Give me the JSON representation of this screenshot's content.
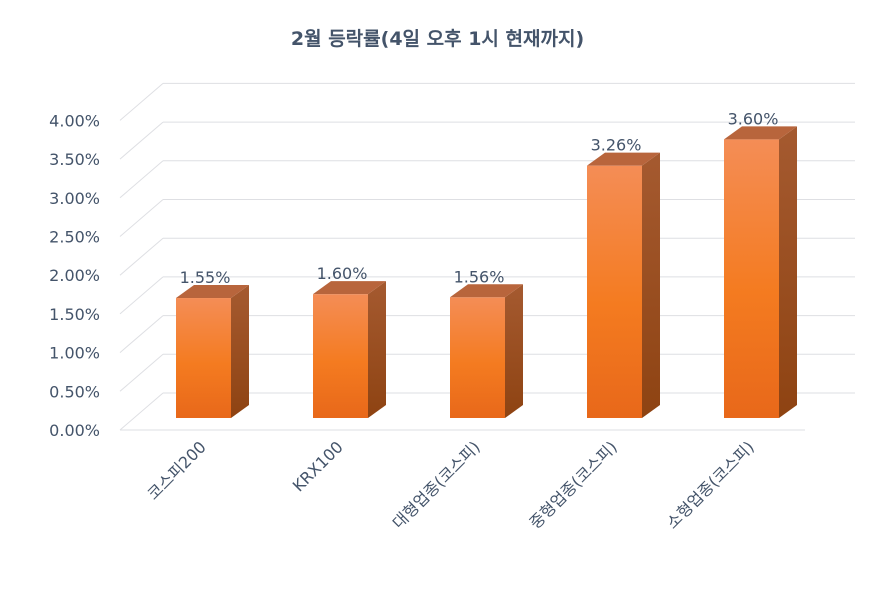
{
  "chart_data": {
    "type": "bar",
    "title": "2월 등락률(4일 오후 1시 현재까지)",
    "categories": [
      "코스피200",
      "KRX100",
      "대형업종(코스피)",
      "중형업종(코스피)",
      "소형업종(코스피)"
    ],
    "values": [
      1.55,
      1.6,
      1.56,
      3.26,
      3.6
    ],
    "data_labels": [
      "1.55%",
      "1.60%",
      "1.56%",
      "3.26%",
      "3.60%"
    ],
    "yticks": [
      "0.00%",
      "0.50%",
      "1.00%",
      "1.50%",
      "2.00%",
      "2.50%",
      "3.00%",
      "3.50%",
      "4.00%"
    ],
    "ylim": [
      0,
      4
    ],
    "xlabel": "",
    "ylabel": "",
    "grid": true,
    "legend": "none",
    "style": "3d-column",
    "colors": {
      "bar": "#f47b20",
      "bar_top": "#b8653c",
      "bar_side": "#9a4a1a",
      "text": "#44546a",
      "grid": "#d9d9d9"
    }
  }
}
